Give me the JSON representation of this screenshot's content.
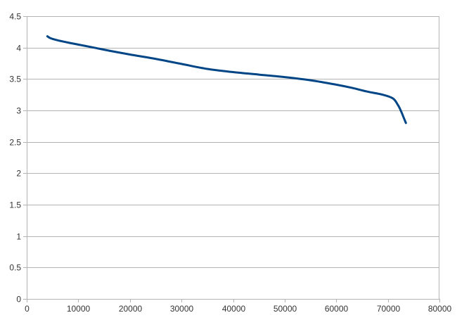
{
  "chart_data": {
    "type": "line",
    "title": "",
    "xlabel": "",
    "ylabel": "",
    "xlim": [
      0,
      80000
    ],
    "ylim": [
      0,
      4.5
    ],
    "x_ticks": [
      0,
      10000,
      20000,
      30000,
      40000,
      50000,
      60000,
      70000,
      80000
    ],
    "y_ticks": [
      0,
      0.5,
      1,
      1.5,
      2,
      2.5,
      3,
      3.5,
      4,
      4.5
    ],
    "x_tick_labels": [
      "0",
      "10000",
      "20000",
      "30000",
      "40000",
      "50000",
      "60000",
      "70000",
      "80000"
    ],
    "y_tick_labels": [
      "0",
      "0.5",
      "1",
      "1.5",
      "2",
      "2.5",
      "3",
      "3.5",
      "4",
      "4.5"
    ],
    "grid": true,
    "legend": "none",
    "series": [
      {
        "color": "#004586",
        "x": [
          4000,
          4600,
          5800,
          8000,
          10500,
          13000,
          16000,
          20000,
          25000,
          30000,
          35000,
          40000,
          45000,
          50000,
          55000,
          60000,
          63000,
          66000,
          69000,
          71000,
          72000,
          72600,
          73100,
          73500
        ],
        "y": [
          4.18,
          4.15,
          4.12,
          4.08,
          4.04,
          4.0,
          3.95,
          3.89,
          3.82,
          3.74,
          3.66,
          3.61,
          3.57,
          3.53,
          3.48,
          3.41,
          3.36,
          3.3,
          3.25,
          3.19,
          3.08,
          2.98,
          2.88,
          2.8
        ]
      }
    ]
  }
}
